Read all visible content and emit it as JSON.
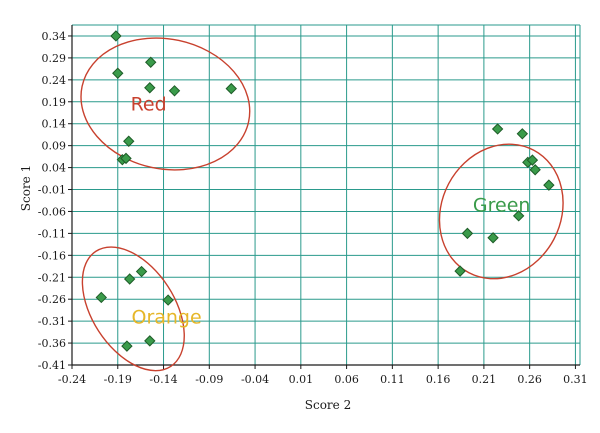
{
  "chart_data": {
    "type": "scatter",
    "xlabel": "Score 2",
    "ylabel": "Score 1",
    "xlim": [
      -0.24,
      0.315
    ],
    "ylim": [
      -0.41,
      0.365
    ],
    "x_ticks": [
      -0.24,
      -0.19,
      -0.14,
      -0.09,
      -0.04,
      0.01,
      0.06,
      0.11,
      0.16,
      0.21,
      0.26,
      0.31
    ],
    "x_tick_labels": [
      "-0.24",
      "-0.19",
      "-0.14",
      "-0.09",
      "-0.04",
      "0.01",
      "0.06",
      "0.11",
      "0.16",
      "0.21",
      "0.26",
      "0.31"
    ],
    "y_ticks": [
      0.34,
      0.29,
      0.24,
      0.19,
      0.14,
      0.09,
      0.04,
      -0.01,
      -0.06,
      -0.11,
      -0.16,
      -0.21,
      -0.26,
      -0.31,
      -0.36,
      -0.41
    ],
    "y_tick_labels": [
      "0.34",
      "0.29",
      "0.24",
      "0.19",
      "0.14",
      "0.09",
      "0.04",
      "-0.01",
      "-0.06",
      "-0.11",
      "-0.16",
      "-0.21",
      "-0.26",
      "-0.31",
      "-0.36",
      "-0.41"
    ],
    "grid": true,
    "colors": {
      "grid": "#2a9a8c",
      "marker_fill": "#3a9b4a",
      "marker_stroke": "#1e5c28",
      "ellipse": "#c8412e",
      "red_label": "#c8412e",
      "green_label": "#3a9b4a",
      "orange_label": "#e6b628"
    },
    "points": [
      {
        "x": -0.192,
        "y": 0.34
      },
      {
        "x": -0.19,
        "y": 0.255
      },
      {
        "x": -0.154,
        "y": 0.28
      },
      {
        "x": -0.155,
        "y": 0.222
      },
      {
        "x": -0.128,
        "y": 0.215
      },
      {
        "x": -0.066,
        "y": 0.22
      },
      {
        "x": -0.178,
        "y": 0.1
      },
      {
        "x": -0.185,
        "y": 0.058
      },
      {
        "x": -0.181,
        "y": 0.061
      },
      {
        "x": 0.225,
        "y": 0.128
      },
      {
        "x": 0.252,
        "y": 0.117
      },
      {
        "x": 0.258,
        "y": 0.052
      },
      {
        "x": 0.263,
        "y": 0.057
      },
      {
        "x": 0.266,
        "y": 0.035
      },
      {
        "x": 0.281,
        "y": 0.0
      },
      {
        "x": 0.248,
        "y": -0.07
      },
      {
        "x": 0.192,
        "y": -0.11
      },
      {
        "x": 0.22,
        "y": -0.12
      },
      {
        "x": 0.184,
        "y": -0.196
      },
      {
        "x": -0.164,
        "y": -0.197
      },
      {
        "x": -0.177,
        "y": -0.214
      },
      {
        "x": -0.208,
        "y": -0.256
      },
      {
        "x": -0.135,
        "y": -0.262
      },
      {
        "x": -0.155,
        "y": -0.355
      },
      {
        "x": -0.18,
        "y": -0.367
      }
    ],
    "clusters": [
      {
        "label": "Red",
        "cx": -0.138,
        "cy": 0.185,
        "rx": 0.093,
        "ry": 0.148,
        "rotate": 12,
        "label_x": -0.176,
        "label_y": 0.17,
        "label_color": "red_label"
      },
      {
        "label": "Green",
        "cx": 0.229,
        "cy": -0.06,
        "rx": 0.065,
        "ry": 0.158,
        "rotate": 28,
        "label_x": 0.198,
        "label_y": -0.06,
        "label_color": "green_label"
      },
      {
        "label": "Orange",
        "cx": -0.173,
        "cy": -0.282,
        "rx": 0.075,
        "ry": 0.094,
        "rotate": 57,
        "label_x": -0.175,
        "label_y": -0.315,
        "label_color": "orange_label"
      }
    ]
  }
}
